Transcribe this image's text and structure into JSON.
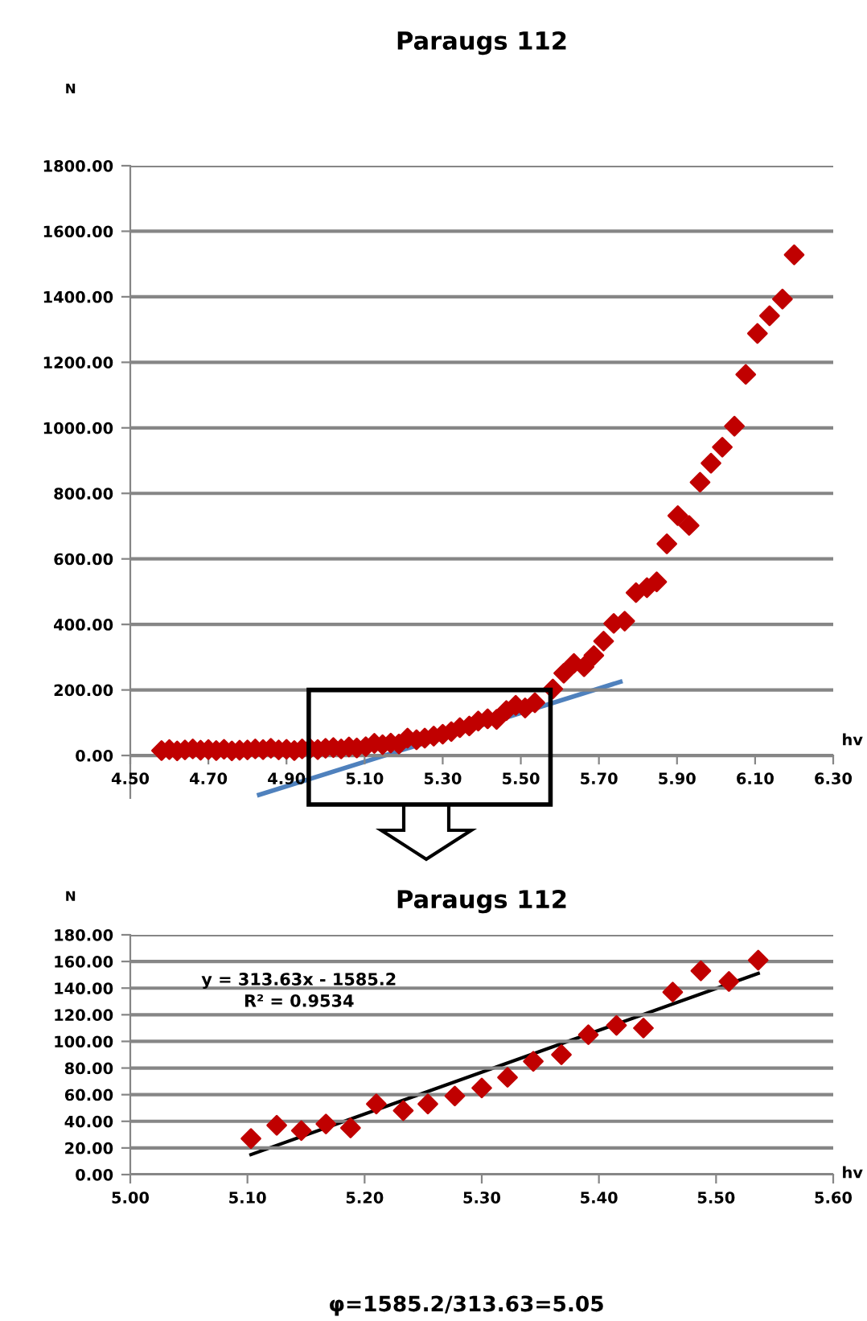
{
  "chart_data": [
    {
      "type": "scatter",
      "title": "Paraugs 112",
      "xlabel": "hv",
      "ylabel": "N",
      "xlim": [
        4.5,
        6.3
      ],
      "ylim": [
        -130,
        1800
      ],
      "xticks": [
        {
          "value": 4.5,
          "label": "4.50"
        },
        {
          "value": 4.7,
          "label": "4.70"
        },
        {
          "value": 4.9,
          "label": "4.90"
        },
        {
          "value": 5.1,
          "label": "5.10"
        },
        {
          "value": 5.3,
          "label": "5.30"
        },
        {
          "value": 5.5,
          "label": "5.50"
        },
        {
          "value": 5.7,
          "label": "5.70"
        },
        {
          "value": 5.9,
          "label": "5.90"
        },
        {
          "value": 6.1,
          "label": "6.10"
        },
        {
          "value": 6.3,
          "label": "6.30"
        }
      ],
      "yticks": [
        {
          "value": 0,
          "label": "0.00"
        },
        {
          "value": 200,
          "label": "200.00"
        },
        {
          "value": 400,
          "label": "400.00"
        },
        {
          "value": 600,
          "label": "600.00"
        },
        {
          "value": 800,
          "label": "800.00"
        },
        {
          "value": 1000,
          "label": "1000.00"
        },
        {
          "value": 1200,
          "label": "1200.00"
        },
        {
          "value": 1400,
          "label": "1400.00"
        },
        {
          "value": 1600,
          "label": "1600.00"
        },
        {
          "value": 1800,
          "label": "1800.00"
        }
      ],
      "grid": "y",
      "series": [
        {
          "marker": "diamond",
          "color": "#c00000",
          "x": [
            4.58,
            4.6,
            4.62,
            4.64,
            4.66,
            4.68,
            4.7,
            4.72,
            4.74,
            4.76,
            4.78,
            4.8,
            4.82,
            4.84,
            4.86,
            4.88,
            4.9,
            4.92,
            4.94,
            4.96,
            4.98,
            5.0,
            5.02,
            5.04,
            5.06,
            5.08,
            5.103,
            5.125,
            5.146,
            5.167,
            5.188,
            5.21,
            5.233,
            5.254,
            5.277,
            5.3,
            5.322,
            5.344,
            5.368,
            5.391,
            5.415,
            5.438,
            5.463,
            5.487,
            5.511,
            5.536,
            5.582,
            5.61,
            5.636,
            5.662,
            5.687,
            5.712,
            5.738,
            5.766,
            5.795,
            5.823,
            5.848,
            5.874,
            5.902,
            5.931,
            5.959,
            5.987,
            6.016,
            6.047,
            6.076,
            6.106,
            6.137,
            6.17,
            6.2
          ],
          "values": [
            15,
            18,
            14,
            17,
            20,
            16,
            18,
            15,
            19,
            14,
            16,
            17,
            20,
            18,
            22,
            17,
            19,
            15,
            20,
            21,
            18,
            22,
            24,
            20,
            26,
            23,
            27,
            37,
            33,
            38,
            35,
            53,
            48,
            53,
            59,
            65,
            73,
            85,
            90,
            105,
            112,
            110,
            137,
            153,
            145,
            161,
            203,
            251,
            281,
            271,
            305,
            349,
            403,
            410,
            497,
            512,
            530,
            646,
            732,
            702,
            834,
            892,
            941,
            1005,
            1163,
            1288,
            1342,
            1393,
            1528
          ]
        },
        {
          "type": "line",
          "color": "#4f81bd",
          "x": [
            4.83,
            5.755
          ],
          "values": [
            -120,
            225
          ]
        }
      ]
    },
    {
      "type": "scatter",
      "title": "Paraugs 112",
      "xlabel": "hv",
      "ylabel": "N",
      "xlim": [
        5.0,
        5.6
      ],
      "ylim": [
        0,
        180
      ],
      "xticks": [
        {
          "value": 5.0,
          "label": "5.00"
        },
        {
          "value": 5.1,
          "label": "5.10"
        },
        {
          "value": 5.2,
          "label": "5.20"
        },
        {
          "value": 5.3,
          "label": "5.30"
        },
        {
          "value": 5.4,
          "label": "5.40"
        },
        {
          "value": 5.5,
          "label": "5.50"
        },
        {
          "value": 5.6,
          "label": "5.60"
        }
      ],
      "yticks": [
        {
          "value": 0,
          "label": "0.00"
        },
        {
          "value": 20,
          "label": "20.00"
        },
        {
          "value": 40,
          "label": "40.00"
        },
        {
          "value": 60,
          "label": "60.00"
        },
        {
          "value": 80,
          "label": "80.00"
        },
        {
          "value": 100,
          "label": "100.00"
        },
        {
          "value": 120,
          "label": "120.00"
        },
        {
          "value": 140,
          "label": "140.00"
        },
        {
          "value": 160,
          "label": "160.00"
        },
        {
          "value": 180,
          "label": "180.00"
        }
      ],
      "grid": "y",
      "annotations": [
        "y = 313.63x - 1585.2",
        "R² = 0.9534",
        "φ=1585.2/313.63=5.05"
      ],
      "series": [
        {
          "marker": "diamond",
          "color": "#c00000",
          "x": [
            5.103,
            5.125,
            5.146,
            5.167,
            5.188,
            5.21,
            5.233,
            5.254,
            5.277,
            5.3,
            5.322,
            5.344,
            5.368,
            5.391,
            5.415,
            5.438,
            5.463,
            5.487,
            5.511,
            5.536
          ],
          "values": [
            27,
            37,
            33,
            38,
            35,
            53,
            48,
            53,
            59,
            65,
            73,
            85,
            90,
            105,
            112,
            110,
            137,
            153,
            145,
            161
          ]
        },
        {
          "type": "line",
          "color": "#000000",
          "x": [
            5.103,
            5.536
          ],
          "values": [
            15,
            151
          ]
        }
      ]
    }
  ]
}
